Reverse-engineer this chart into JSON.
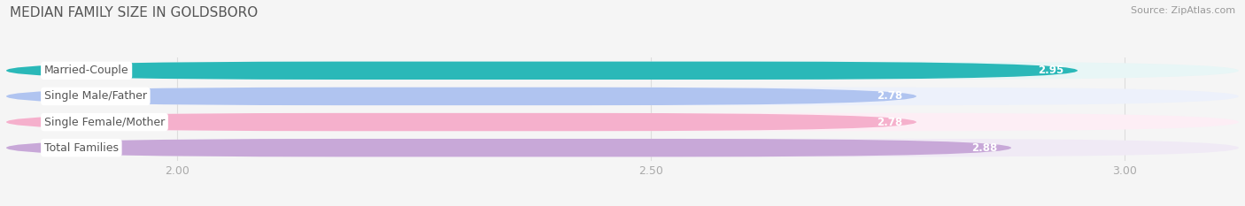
{
  "title": "MEDIAN FAMILY SIZE IN GOLDSBORO",
  "source": "Source: ZipAtlas.com",
  "categories": [
    "Married-Couple",
    "Single Male/Father",
    "Single Female/Mother",
    "Total Families"
  ],
  "values": [
    2.95,
    2.78,
    2.78,
    2.88
  ],
  "bar_colors": [
    "#2ab8b8",
    "#b0c4f0",
    "#f5b0cc",
    "#c8a8d8"
  ],
  "bar_bg_colors": [
    "#e8f6f6",
    "#edf1fb",
    "#fdeef5",
    "#f0eaf5"
  ],
  "xlim_min": 1.82,
  "xlim_max": 3.12,
  "data_min": 1.82,
  "xticks": [
    2.0,
    2.5,
    3.0
  ],
  "bar_height": 0.7,
  "background_color": "#f5f5f5",
  "value_label_color": "#ffffff",
  "title_fontsize": 11,
  "label_fontsize": 9,
  "value_fontsize": 8.5,
  "source_fontsize": 8,
  "grid_color": "#dddddd",
  "tick_color": "#aaaaaa"
}
